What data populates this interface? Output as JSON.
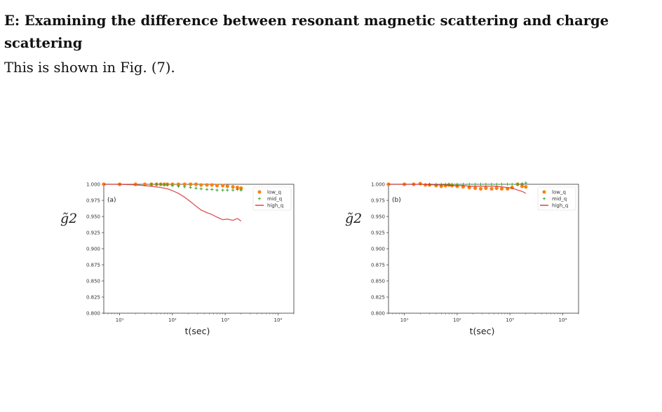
{
  "section": {
    "heading": "E: Examining the difference between resonant magnetic scattering and charge scattering",
    "body": "This is shown in Fig. (7)."
  },
  "colors": {
    "low_q": "#ff7f0e",
    "mid_q": "#2ca02c",
    "high_q": "#d62728"
  },
  "chart_data": [
    {
      "type": "scatter",
      "panel_label": "(a)",
      "xlabel": "t(sec)",
      "ylabel": "g̃2",
      "xscale": "log",
      "xlim": [
        5,
        20000
      ],
      "ylim": [
        0.8,
        1.0
      ],
      "yticks": [
        "0.800",
        "0.825",
        "0.850",
        "0.875",
        "0.900",
        "0.925",
        "0.950",
        "0.975",
        "1.000"
      ],
      "xticks": [
        "10¹",
        "10²",
        "10³",
        "10⁴"
      ],
      "legend_position": "top-right",
      "series": [
        {
          "name": "low_q",
          "marker": "dot",
          "x": [
            5,
            10,
            20,
            30,
            40,
            50,
            60,
            70,
            80,
            100,
            130,
            170,
            220,
            280,
            350,
            450,
            560,
            700,
            900,
            1100,
            1400,
            1700,
            2000
          ],
          "y": [
            1.0,
            1.0,
            1.0,
            1.0,
            1.0,
            1.0,
            1.0,
            1.0,
            1.0,
            1.0,
            1.0,
            1.0,
            1.0,
            1.0,
            0.999,
            0.999,
            0.999,
            0.998,
            0.998,
            0.997,
            0.996,
            0.995,
            0.994
          ]
        },
        {
          "name": "mid_q",
          "marker": "plus",
          "x": [
            40,
            50,
            60,
            70,
            80,
            100,
            130,
            170,
            220,
            280,
            350,
            450,
            560,
            700,
            900,
            1100,
            1400,
            1700,
            2000
          ],
          "y": [
            1.0,
            1.0,
            1.0,
            0.999,
            0.999,
            0.998,
            0.997,
            0.996,
            0.995,
            0.994,
            0.993,
            0.992,
            0.992,
            0.991,
            0.991,
            0.991,
            0.991,
            0.992,
            0.991
          ]
        },
        {
          "name": "high_q",
          "marker": "line",
          "x": [
            5,
            10,
            20,
            40,
            60,
            80,
            100,
            130,
            170,
            220,
            280,
            350,
            450,
            560,
            700,
            900,
            1100,
            1400,
            1700,
            2000
          ],
          "y": [
            1.0,
            1.0,
            0.999,
            0.997,
            0.995,
            0.993,
            0.99,
            0.986,
            0.98,
            0.973,
            0.966,
            0.96,
            0.956,
            0.953,
            0.949,
            0.945,
            0.946,
            0.944,
            0.947,
            0.943
          ]
        }
      ]
    },
    {
      "type": "scatter",
      "panel_label": "(b)",
      "xlabel": "t(sec)",
      "ylabel": "g̃2",
      "xscale": "log",
      "xlim": [
        5,
        20000
      ],
      "ylim": [
        0.8,
        1.0
      ],
      "yticks": [
        "0.800",
        "0.825",
        "0.850",
        "0.875",
        "0.900",
        "0.925",
        "0.950",
        "0.975",
        "1.000"
      ],
      "xticks": [
        "10¹",
        "10²",
        "10³",
        "10⁴"
      ],
      "legend_position": "top-right",
      "series": [
        {
          "name": "low_q",
          "marker": "dot",
          "x": [
            5,
            10,
            15,
            20,
            25,
            30,
            40,
            50,
            60,
            70,
            80,
            100,
            130,
            170,
            220,
            280,
            350,
            450,
            560,
            700,
            900,
            1100,
            1400,
            1700,
            2000
          ],
          "y": [
            1.0,
            1.0,
            1.0,
            1.001,
            0.999,
            0.999,
            0.998,
            0.997,
            0.998,
            0.999,
            0.998,
            0.997,
            0.996,
            0.995,
            0.994,
            0.993,
            0.994,
            0.993,
            0.994,
            0.993,
            0.993,
            0.995,
            1.0,
            0.997,
            0.996
          ]
        },
        {
          "name": "mid_q",
          "marker": "plus",
          "x": [
            30,
            40,
            50,
            60,
            70,
            80,
            100,
            130,
            170,
            220,
            280,
            350,
            450,
            560,
            700,
            900,
            1100,
            1400,
            1700,
            2000
          ],
          "y": [
            1.0,
            1.0,
            1.0,
            1.0,
            1.0,
            1.0,
            1.0,
            1.0,
            1.0,
            1.0,
            1.0,
            1.0,
            1.0,
            1.0,
            1.0,
            1.0,
            1.0,
            1.0,
            1.001,
            1.002
          ]
        },
        {
          "name": "high_q",
          "marker": "line",
          "x": [
            5,
            10,
            20,
            40,
            60,
            80,
            100,
            130,
            170,
            220,
            280,
            350,
            450,
            560,
            700,
            900,
            1100,
            1400,
            1700,
            2000
          ],
          "y": [
            1.0,
            1.0,
            1.0,
            0.999,
            0.999,
            0.998,
            0.998,
            0.998,
            0.997,
            0.997,
            0.997,
            0.997,
            0.997,
            0.997,
            0.996,
            0.995,
            0.994,
            0.991,
            0.989,
            0.986
          ]
        }
      ]
    }
  ]
}
